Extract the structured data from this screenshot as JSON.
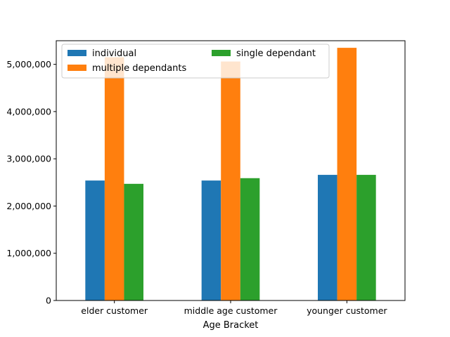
{
  "chart_data": {
    "type": "bar",
    "categories": [
      "elder customer",
      "middle age customer",
      "younger customer"
    ],
    "series": [
      {
        "name": "individual",
        "color": "#1f77b4",
        "values": [
          2540000,
          2540000,
          2660000
        ]
      },
      {
        "name": "multiple dependants",
        "color": "#ff7f0e",
        "values": [
          5150000,
          5060000,
          5350000
        ]
      },
      {
        "name": "single dependant",
        "color": "#2ca02c",
        "values": [
          2470000,
          2590000,
          2660000
        ]
      }
    ],
    "title": "",
    "xlabel": "Age Bracket",
    "ylabel": "",
    "ylim": [
      0,
      5500000
    ],
    "yticks": [
      0,
      1000000,
      2000000,
      3000000,
      4000000,
      5000000
    ],
    "ytick_labels": [
      "0",
      "1,000,000",
      "2,000,000",
      "3,000,000",
      "4,000,000",
      "5,000,000"
    ],
    "legend": {
      "placement": "top-left",
      "columns": 2
    },
    "grid": false
  }
}
